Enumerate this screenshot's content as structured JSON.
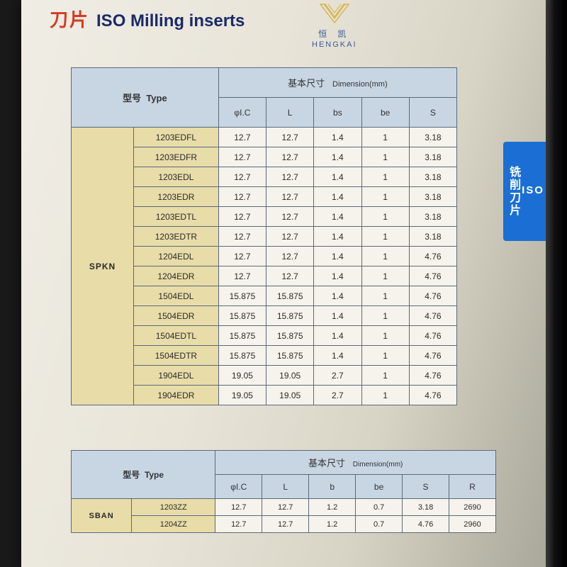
{
  "header": {
    "title_cn": "刀片",
    "title_en": "ISO  Milling inserts",
    "brand_cn": "恒   凯",
    "brand_en": "HENGKAI"
  },
  "side_tab": {
    "iso": "ISO",
    "cn": "铣削刀片"
  },
  "table1": {
    "type_label_cn": "型号",
    "type_label_en": "Type",
    "dim_label_cn": "基本尺寸",
    "dim_label_en": "Dimension(mm)",
    "columns": [
      "φI.C",
      "L",
      "bs",
      "be",
      "S"
    ],
    "category": "SPKN",
    "rows": [
      {
        "code": "1203EDFL",
        "vals": [
          "12.7",
          "12.7",
          "1.4",
          "1",
          "3.18"
        ]
      },
      {
        "code": "1203EDFR",
        "vals": [
          "12.7",
          "12.7",
          "1.4",
          "1",
          "3.18"
        ]
      },
      {
        "code": "1203EDL",
        "vals": [
          "12.7",
          "12.7",
          "1.4",
          "1",
          "3.18"
        ]
      },
      {
        "code": "1203EDR",
        "vals": [
          "12.7",
          "12.7",
          "1.4",
          "1",
          "3.18"
        ]
      },
      {
        "code": "1203EDTL",
        "vals": [
          "12.7",
          "12.7",
          "1.4",
          "1",
          "3.18"
        ]
      },
      {
        "code": "1203EDTR",
        "vals": [
          "12.7",
          "12.7",
          "1.4",
          "1",
          "3.18"
        ]
      },
      {
        "code": "1204EDL",
        "vals": [
          "12.7",
          "12.7",
          "1.4",
          "1",
          "4.76"
        ]
      },
      {
        "code": "1204EDR",
        "vals": [
          "12.7",
          "12.7",
          "1.4",
          "1",
          "4.76"
        ]
      },
      {
        "code": "1504EDL",
        "vals": [
          "15.875",
          "15.875",
          "1.4",
          "1",
          "4.76"
        ]
      },
      {
        "code": "1504EDR",
        "vals": [
          "15.875",
          "15.875",
          "1.4",
          "1",
          "4.76"
        ]
      },
      {
        "code": "1504EDTL",
        "vals": [
          "15.875",
          "15.875",
          "1.4",
          "1",
          "4.76"
        ]
      },
      {
        "code": "1504EDTR",
        "vals": [
          "15.875",
          "15.875",
          "1.4",
          "1",
          "4.76"
        ]
      },
      {
        "code": "1904EDL",
        "vals": [
          "19.05",
          "19.05",
          "2.7",
          "1",
          "4.76"
        ]
      },
      {
        "code": "1904EDR",
        "vals": [
          "19.05",
          "19.05",
          "2.7",
          "1",
          "4.76"
        ]
      }
    ]
  },
  "table2": {
    "type_label_cn": "型号",
    "type_label_en": "Type",
    "dim_label_cn": "基本尺寸",
    "dim_label_en": "Dimension(mm)",
    "columns": [
      "φI.C",
      "L",
      "b",
      "be",
      "S",
      "R"
    ],
    "category": "SBAN",
    "rows": [
      {
        "code": "1203ZZ",
        "vals": [
          "12.7",
          "12.7",
          "1.2",
          "0.7",
          "3.18",
          "2690"
        ]
      },
      {
        "code": "1204ZZ",
        "vals": [
          "12.7",
          "12.7",
          "1.2",
          "0.7",
          "4.76",
          "2960"
        ]
      }
    ]
  },
  "colors": {
    "header_blue": "#c8d6e4",
    "header_tan": "#e8dca8",
    "cell_white": "#f5f3eb",
    "border": "#5a6a7a",
    "tab_blue": "#1b6fd4",
    "title_red": "#d43a22",
    "title_navy": "#1a2a6a"
  }
}
